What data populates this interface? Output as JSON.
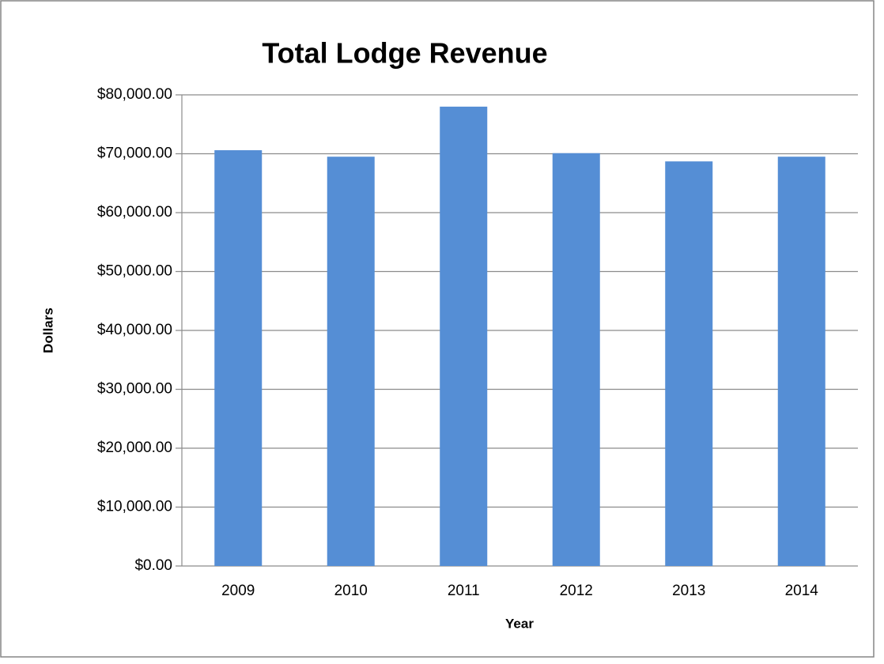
{
  "chart_data": {
    "type": "bar",
    "title": "Total Lodge Revenue",
    "x_label": "Year",
    "y_label": "Dollars",
    "categories": [
      "2009",
      "2010",
      "2011",
      "2012",
      "2013",
      "2014"
    ],
    "values": [
      70600,
      69500,
      78000,
      70100,
      68700,
      69500
    ],
    "color": "#558ed5",
    "ylim": [
      0,
      80000
    ],
    "yticks": [
      {
        "value": 0,
        "label": "$0.00"
      },
      {
        "value": 10000,
        "label": "$10,000.00"
      },
      {
        "value": 20000,
        "label": "$20,000.00"
      },
      {
        "value": 30000,
        "label": "$30,000.00"
      },
      {
        "value": 40000,
        "label": "$40,000.00"
      },
      {
        "value": 50000,
        "label": "$50,000.00"
      },
      {
        "value": 60000,
        "label": "$60,000.00"
      },
      {
        "value": 70000,
        "label": "$70,000.00"
      },
      {
        "value": 80000,
        "label": "$80,000.00"
      }
    ],
    "grid": true
  }
}
